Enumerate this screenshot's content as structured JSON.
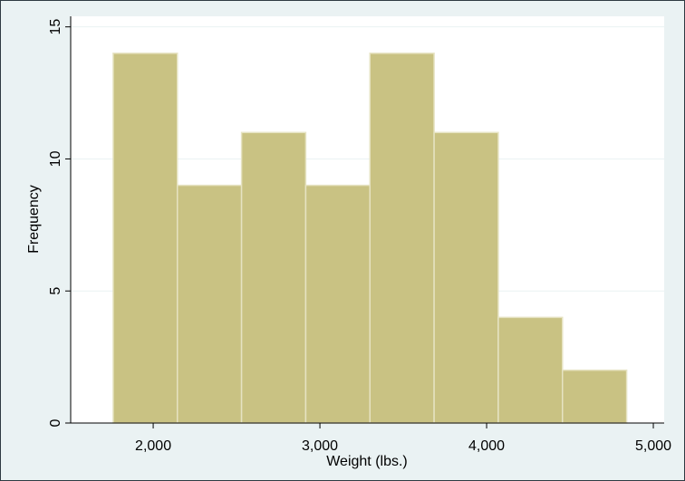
{
  "chart_data": {
    "type": "histogram",
    "bins": [
      1760,
      2145,
      2530,
      2915,
      3300,
      3685,
      4070,
      4455,
      4840
    ],
    "values": [
      14,
      9,
      11,
      9,
      14,
      11,
      4,
      2
    ],
    "color": "#c9c283",
    "xlabel": "Weight (lbs.)",
    "ylabel": "Frequency",
    "xlim": [
      1505,
      5065
    ],
    "ylim": [
      0,
      15.4
    ],
    "xticks": [
      {
        "value": 2000,
        "label": "2,000"
      },
      {
        "value": 3000,
        "label": "3,000"
      },
      {
        "value": 4000,
        "label": "4,000"
      },
      {
        "value": 5000,
        "label": "5,000"
      }
    ],
    "yticks": [
      0,
      5,
      10,
      15
    ],
    "grid": true
  }
}
